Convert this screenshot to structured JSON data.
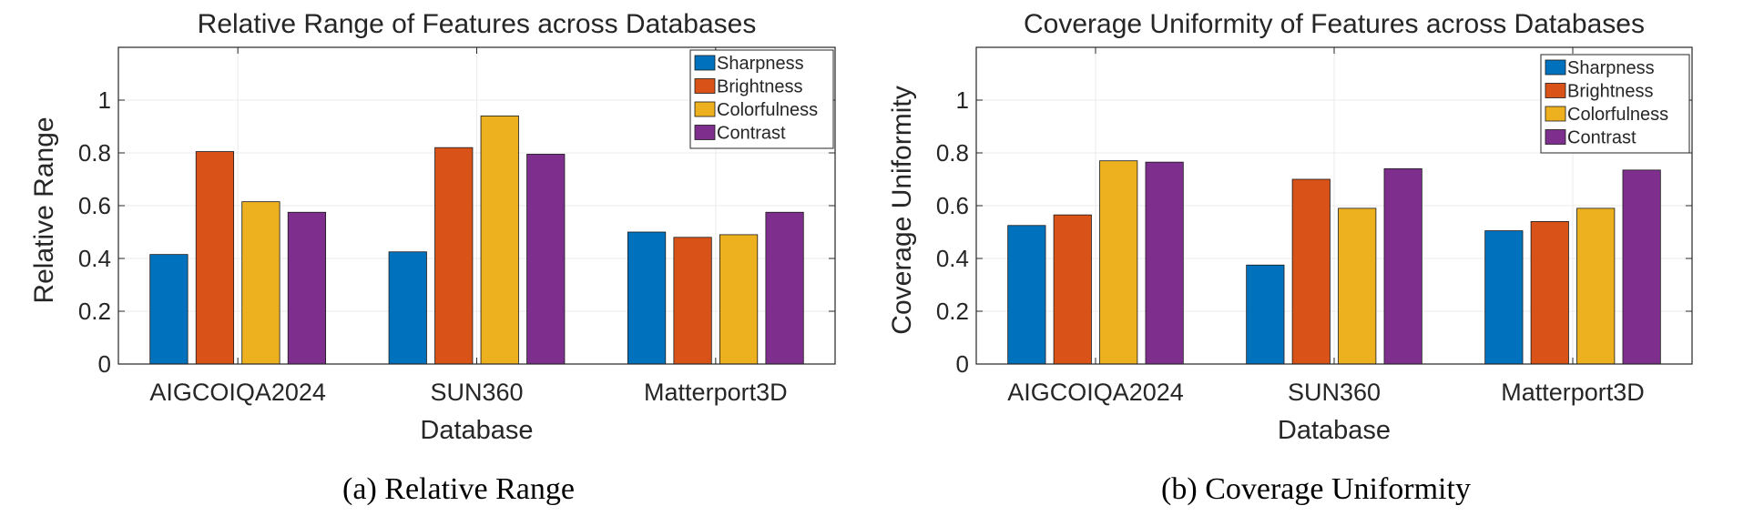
{
  "chart_data": [
    {
      "type": "bar",
      "title": "Relative Range of Features across Databases",
      "xlabel": "Database",
      "ylabel": "Relative Range",
      "caption": "(a) Relative Range",
      "categories": [
        "AIGCOIQA2024",
        "SUN360",
        "Matterport3D"
      ],
      "ylim": [
        0,
        1.2
      ],
      "yticks": [
        "0",
        "0.2",
        "0.4",
        "0.6",
        "0.8",
        "1"
      ],
      "grid": true,
      "legend_position": "top-right",
      "series": [
        {
          "name": "Sharpness",
          "values": [
            0.415,
            0.425,
            0.5
          ]
        },
        {
          "name": "Brightness",
          "values": [
            0.805,
            0.82,
            0.48
          ]
        },
        {
          "name": "Colorfulness",
          "values": [
            0.615,
            0.94,
            0.49
          ]
        },
        {
          "name": "Contrast",
          "values": [
            0.575,
            0.795,
            0.575
          ]
        }
      ]
    },
    {
      "type": "bar",
      "title": "Coverage Uniformity of Features across Databases",
      "xlabel": "Database",
      "ylabel": "Coverage Uniformity",
      "caption": "(b) Coverage Uniformity",
      "categories": [
        "AIGCOIQA2024",
        "SUN360",
        "Matterport3D"
      ],
      "ylim": [
        0,
        1.2
      ],
      "yticks": [
        "0",
        "0.2",
        "0.4",
        "0.6",
        "0.8",
        "1"
      ],
      "grid": true,
      "legend_position": "top-right",
      "series": [
        {
          "name": "Sharpness",
          "values": [
            0.525,
            0.375,
            0.505
          ]
        },
        {
          "name": "Brightness",
          "values": [
            0.565,
            0.7,
            0.54
          ]
        },
        {
          "name": "Colorfulness",
          "values": [
            0.77,
            0.59,
            0.59
          ]
        },
        {
          "name": "Contrast",
          "values": [
            0.765,
            0.74,
            0.735
          ]
        }
      ]
    }
  ],
  "colors": {
    "Sharpness": "#0072BD",
    "Brightness": "#D95319",
    "Colorfulness": "#EDB120",
    "Contrast": "#7E2F8E",
    "grid": "#ebebeb",
    "axis": "#262626"
  }
}
